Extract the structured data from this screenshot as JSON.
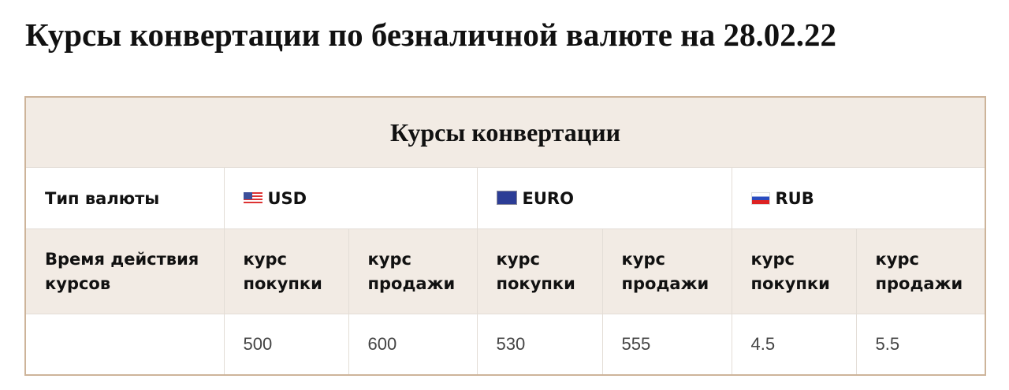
{
  "title": "Курсы конвертации по безналичной валюте на 28.02.22",
  "table": {
    "caption": "Курсы конвертации",
    "currency_type_label": "Тип валюты",
    "validity_label": "Время действия курсов",
    "validity_value": "",
    "currencies": [
      {
        "code": "USD",
        "flag": "us-flag-icon",
        "buy_label": "курс покупки",
        "sell_label": "курс продажи",
        "buy": "500",
        "sell": "600"
      },
      {
        "code": "EURO",
        "flag": "eu-flag-icon",
        "buy_label": "курс покупки",
        "sell_label": "курс продажи",
        "buy": "530",
        "sell": "555"
      },
      {
        "code": "RUB",
        "flag": "ru-flag-icon",
        "buy_label": "курс покупки",
        "sell_label": "курс продажи",
        "buy": "4.5",
        "sell": "5.5"
      }
    ]
  },
  "colors": {
    "header_bg": "#f2ebe4",
    "border": "#cdb49a"
  }
}
